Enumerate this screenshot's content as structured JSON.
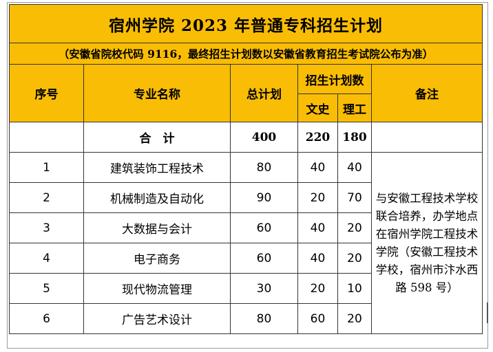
{
  "title": "宿州学院 2023 年普通专科招生计划",
  "subtitle": "（安徽省院校代码 9116，最终招生计划数以安徽省教育招生考试院公布为准）",
  "headers": {
    "seq": "序号",
    "major": "专业名称",
    "total": "总计划",
    "plan": "招生计划数",
    "arts": "文史",
    "science": "理工",
    "note": "备注"
  },
  "totals": {
    "label": "合　计",
    "total": "400",
    "arts": "220",
    "science": "180"
  },
  "rows": [
    {
      "seq": "1",
      "major": "建筑装饰工程技术",
      "total": "80",
      "arts": "40",
      "science": "40"
    },
    {
      "seq": "2",
      "major": "机械制造及自动化",
      "total": "90",
      "arts": "20",
      "science": "70"
    },
    {
      "seq": "3",
      "major": "大数据与会计",
      "total": "60",
      "arts": "40",
      "science": "20"
    },
    {
      "seq": "4",
      "major": "电子商务",
      "total": "60",
      "arts": "40",
      "science": "20"
    },
    {
      "seq": "5",
      "major": "现代物流管理",
      "total": "30",
      "arts": "20",
      "science": "10"
    },
    {
      "seq": "6",
      "major": "广告艺术设计",
      "total": "80",
      "arts": "60",
      "science": "20"
    }
  ],
  "note": "与安徽工程技术学校联合培养，办学地点在宿州学院工程技术学院（安徽工程技术学校，宿州市汴水西路 598 号）"
}
